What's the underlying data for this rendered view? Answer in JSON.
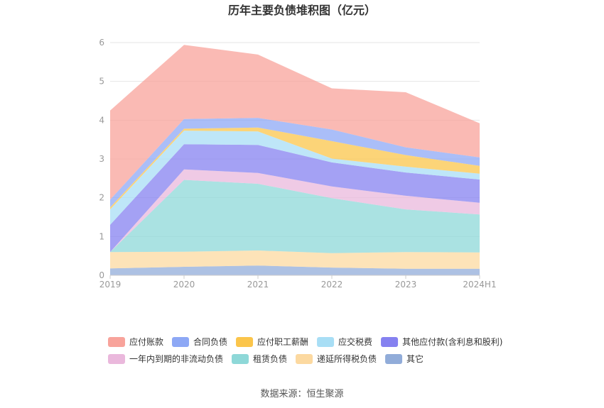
{
  "chart_data": {
    "type": "area",
    "title": "历年主要负债堆积图（亿元）",
    "categories": [
      "2019",
      "2020",
      "2021",
      "2022",
      "2023",
      "2024H1"
    ],
    "ylim": [
      0,
      6
    ],
    "yticks": [
      0,
      1,
      2,
      3,
      4,
      5,
      6
    ],
    "grid": true,
    "legend_position": "bottom",
    "series": [
      {
        "name": "应付账款",
        "color": "#f8a39b",
        "values": [
          2.3,
          1.91,
          1.63,
          1.06,
          1.42,
          0.88
        ]
      },
      {
        "name": "合同负债",
        "color": "#8da8f5",
        "values": [
          0.2,
          0.25,
          0.25,
          0.3,
          0.2,
          0.22
        ]
      },
      {
        "name": "应付职工薪酬",
        "color": "#fbc54b",
        "values": [
          0.05,
          0.05,
          0.1,
          0.45,
          0.3,
          0.2
        ]
      },
      {
        "name": "应交税费",
        "color": "#a8def5",
        "values": [
          0.4,
          0.35,
          0.35,
          0.1,
          0.15,
          0.15
        ]
      },
      {
        "name": "其他应付款(含利息和股利)",
        "color": "#8581f0",
        "values": [
          0.7,
          0.65,
          0.72,
          0.62,
          0.6,
          0.6
        ]
      },
      {
        "name": "一年内到期的非流动负债",
        "color": "#eab8dc",
        "values": [
          0.0,
          0.27,
          0.28,
          0.3,
          0.35,
          0.3
        ]
      },
      {
        "name": "租赁负债",
        "color": "#8ed8d8",
        "values": [
          0.0,
          1.85,
          1.72,
          1.42,
          1.1,
          0.98
        ]
      },
      {
        "name": "递延所得税负债",
        "color": "#fcd9a0",
        "values": [
          0.42,
          0.39,
          0.39,
          0.37,
          0.43,
          0.42
        ]
      },
      {
        "name": "其它",
        "color": "#91acd9",
        "values": [
          0.18,
          0.22,
          0.25,
          0.2,
          0.17,
          0.17
        ]
      }
    ]
  },
  "footer": {
    "source": "数据来源：恒生聚源"
  }
}
